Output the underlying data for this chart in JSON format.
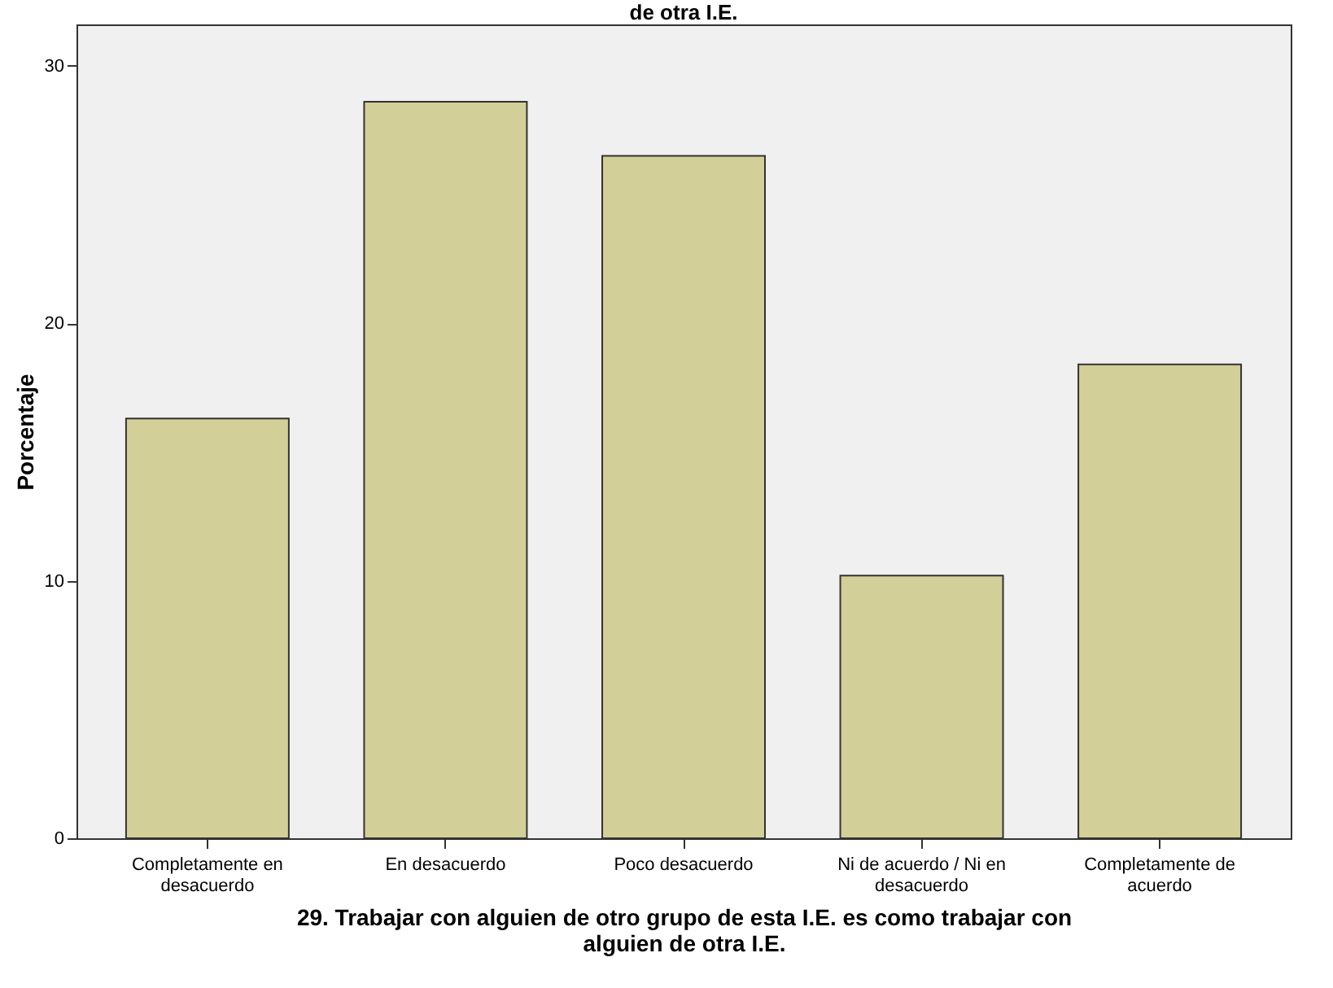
{
  "chart_data": {
    "type": "bar",
    "title": "de otra I.E.",
    "xlabel": "29. Trabajar con alguien de otro grupo de esta I.E. es como trabajar con alguien de otra I.E.",
    "ylabel": "Porcentaje",
    "categories": [
      "Completamente en desacuerdo",
      "En desacuerdo",
      "Poco desacuerdo",
      "Ni de acuerdo / Ni en desacuerdo",
      "Completamente de acuerdo"
    ],
    "values": [
      16.3,
      28.6,
      26.5,
      10.2,
      18.4
    ],
    "color": "#d3cf98",
    "ylim": [
      0,
      31.6
    ],
    "yticks": [
      0,
      10,
      20,
      30
    ],
    "grid": false
  }
}
